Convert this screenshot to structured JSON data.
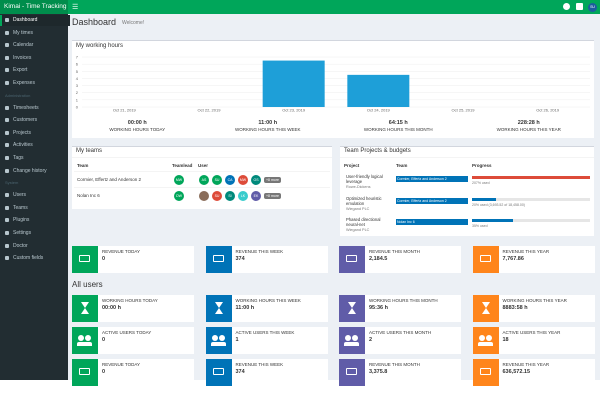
{
  "app": {
    "brand": "Kimai - Time Tracking",
    "user": "SU"
  },
  "sidebar": {
    "main": [
      "Dashboard",
      "My times",
      "Calendar",
      "Invoices",
      "Export",
      "Expenses"
    ],
    "admin_title": "Administration",
    "admin": [
      "Timesheets",
      "Customers",
      "Projects",
      "Activities",
      "Tags",
      "Change history"
    ],
    "system_title": "System",
    "system": [
      "Users",
      "Teams",
      "Plugins",
      "Settings",
      "Doctor",
      "Custom fields"
    ]
  },
  "header": {
    "title": "Dashboard",
    "subtitle": "Welcome!"
  },
  "chart_data": {
    "type": "bar",
    "title": "My working hours",
    "categories": [
      "Oct 21, 2019",
      "Oct 22, 2019",
      "Oct 23, 2019",
      "Oct 24, 2019",
      "Oct 25, 2019",
      "Oct 26, 2019"
    ],
    "values": [
      0,
      0,
      6.5,
      4.5,
      0,
      0
    ],
    "color": "#1e9fd8",
    "ylim": [
      0,
      7
    ],
    "yticks": [
      0,
      1,
      2,
      3,
      4,
      5,
      6,
      7
    ],
    "grid": true
  },
  "chart_stats": [
    {
      "value": "00:00 h",
      "label": "WORKING HOURS TODAY"
    },
    {
      "value": "11:00 h",
      "label": "WORKING HOURS THIS WEEK"
    },
    {
      "value": "64:15 h",
      "label": "WORKING HOURS THIS MONTH"
    },
    {
      "value": "228:28 h",
      "label": "WORKING HOURS THIS YEAR"
    }
  ],
  "my_teams": {
    "title": "My teams",
    "columns": [
      "Team",
      "Teamlead",
      "User"
    ],
    "rows": [
      {
        "team": "Cormier, Effertz and Anderson 2",
        "lead": "MW",
        "users": [
          "AS",
          "SU",
          "CA",
          "MW",
          "OS"
        ],
        "more": "+8 more"
      },
      {
        "team": "Nolan Inc 6",
        "lead": "DW",
        "users": [
          "SU",
          "SI",
          "LK",
          "EK"
        ],
        "more": "+8 more"
      }
    ]
  },
  "team_projects": {
    "title": "Team Projects & budgets",
    "columns": [
      "Project",
      "Team",
      "Progress"
    ],
    "rows": [
      {
        "project": "User-friendly logical leverage",
        "customer": "Rowe-Dickens",
        "team": "Cormier, Effertz and Anderson 2",
        "progress": 207,
        "progress_label": "207% used"
      },
      {
        "project": "Optimized heuristic emulation",
        "customer": "Wiegand PLC",
        "team": "Cormier, Effertz and Anderson 2",
        "progress": 20,
        "progress_label": "20% used (3,693.52 of 18,458.00)"
      },
      {
        "project": "Phased directional neural-net",
        "customer": "Wiegand PLC",
        "team": "Nolan Inc 6",
        "progress": 35,
        "progress_label": "35% used"
      }
    ]
  },
  "revenue": [
    {
      "label": "REVENUE TODAY",
      "value": "0"
    },
    {
      "label": "REVENUE THIS WEEK",
      "value": "374"
    },
    {
      "label": "REVENUE THIS MONTH",
      "value": "2,184.5"
    },
    {
      "label": "REVENUE THIS YEAR",
      "value": "7,767.86"
    }
  ],
  "all_users": {
    "title": "All users",
    "rows": [
      [
        {
          "label": "WORKING HOURS TODAY",
          "value": "00:00 h"
        },
        {
          "label": "WORKING HOURS THIS WEEK",
          "value": "11:00 h"
        },
        {
          "label": "WORKING HOURS THIS MONTH",
          "value": "95:36 h"
        },
        {
          "label": "WORKING HOURS THIS YEAR",
          "value": "8883:58 h"
        }
      ],
      [
        {
          "label": "ACTIVE USERS TODAY",
          "value": "0"
        },
        {
          "label": "ACTIVE USERS THIS WEEK",
          "value": "1"
        },
        {
          "label": "ACTIVE USERS THIS MONTH",
          "value": "2"
        },
        {
          "label": "ACTIVE USERS THIS YEAR",
          "value": "18"
        }
      ],
      [
        {
          "label": "REVENUE TODAY",
          "value": "0"
        },
        {
          "label": "REVENUE THIS WEEK",
          "value": "374"
        },
        {
          "label": "REVENUE THIS MONTH",
          "value": "3,375.8"
        },
        {
          "label": "REVENUE THIS YEAR",
          "value": "636,572.15"
        }
      ]
    ]
  }
}
